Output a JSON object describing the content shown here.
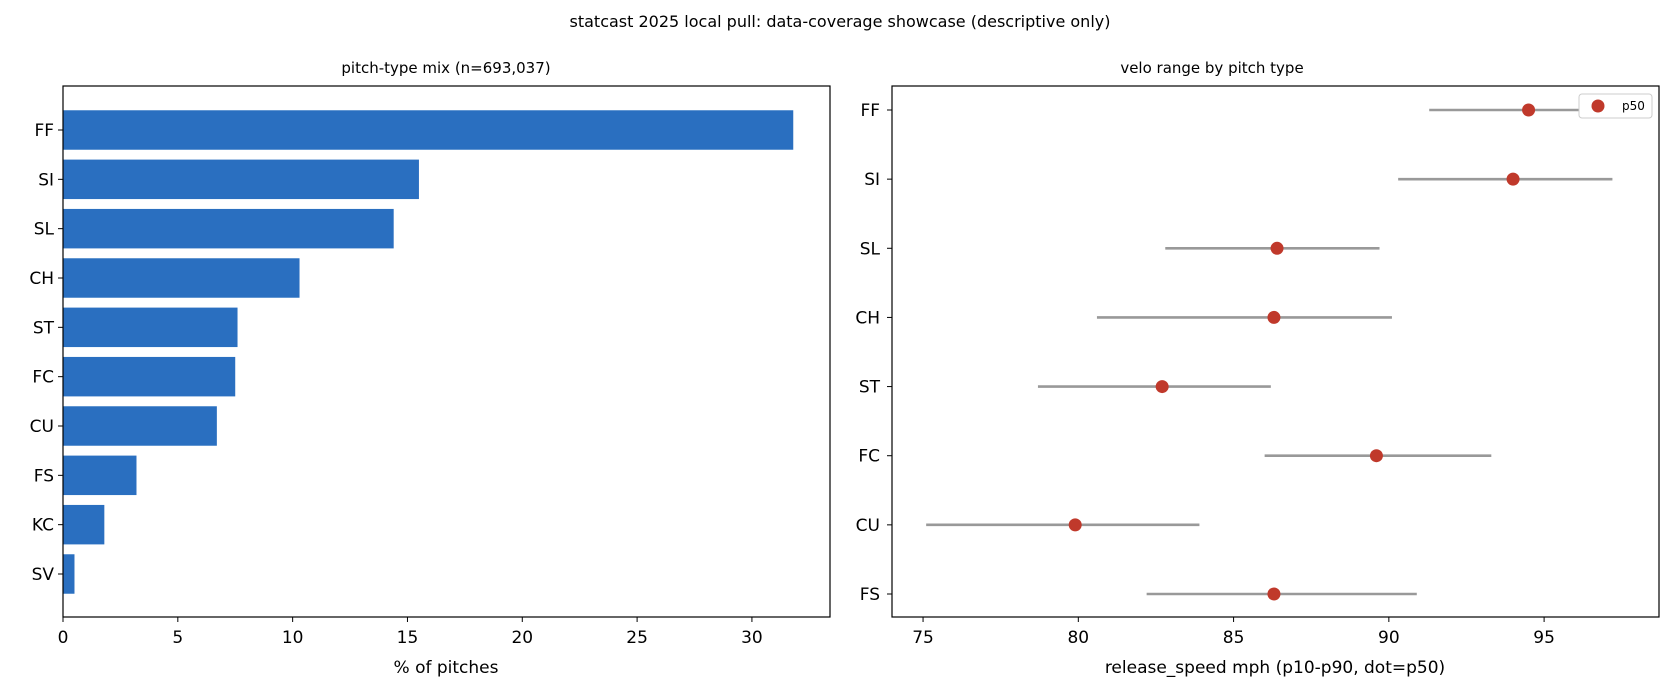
{
  "figure": {
    "suptitle": "statcast 2025 local pull: data-coverage showcase (descriptive only)"
  },
  "colors": {
    "bar": "#2a6fc0",
    "range_line": "#999999",
    "p50_dot": "#c0392b",
    "axes": "#000000"
  },
  "chart_data": [
    {
      "type": "bar",
      "orientation": "horizontal",
      "title": "pitch-type mix (n=693,037)",
      "xlabel": "% of pitches",
      "ylabel": "",
      "categories": [
        "FF",
        "SI",
        "SL",
        "CH",
        "ST",
        "FC",
        "CU",
        "FS",
        "KC",
        "SV"
      ],
      "values": [
        31.8,
        15.5,
        14.4,
        10.3,
        7.6,
        7.5,
        6.7,
        3.2,
        1.8,
        0.5
      ],
      "xlim": [
        0,
        33.4
      ],
      "xticks": [
        0,
        5,
        10,
        15,
        20,
        25,
        30
      ],
      "grid": false
    },
    {
      "type": "scatter",
      "title": "velo range by pitch type",
      "xlabel": "release_speed mph (p10-p90, dot=p50)",
      "ylabel": "",
      "categories": [
        "FF",
        "SI",
        "SL",
        "CH",
        "ST",
        "FC",
        "CU",
        "FS"
      ],
      "series": [
        {
          "name": "p50",
          "p10": [
            91.3,
            90.3,
            82.8,
            80.6,
            78.7,
            86.0,
            75.1,
            82.2
          ],
          "p50": [
            94.5,
            94.0,
            86.4,
            86.3,
            82.7,
            89.6,
            79.9,
            86.3
          ],
          "p90": [
            97.3,
            97.2,
            89.7,
            90.1,
            86.2,
            93.3,
            83.9,
            90.9
          ]
        }
      ],
      "xlim": [
        74.0,
        98.7
      ],
      "xticks": [
        75,
        80,
        85,
        90,
        95
      ],
      "legend": "top-right",
      "grid": false
    }
  ]
}
